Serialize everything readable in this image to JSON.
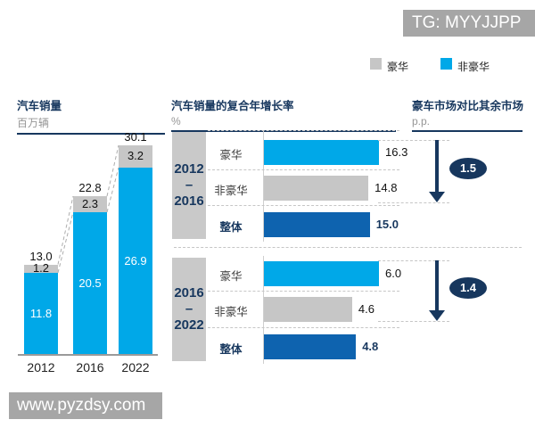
{
  "banner": {
    "text": "TG: MYYJJPP"
  },
  "watermark": {
    "text": "www.pyzdsy.com"
  },
  "legend": {
    "items": [
      {
        "name": "luxury",
        "label": "豪华",
        "color": "#c6c6c6"
      },
      {
        "name": "non-luxury",
        "label": "非豪华",
        "color": "#00a8e8"
      }
    ]
  },
  "colors": {
    "navy": "#17375e",
    "light_blue": "#00a8e8",
    "dark_blue": "#0e63af",
    "gray_bar": "#c6c6c6",
    "gray_block": "#c9c9c9",
    "banner_gray": "#a6a6a6"
  },
  "chart_data": [
    {
      "id": "auto-sales",
      "type": "bar",
      "stacked": true,
      "title": "汽车销量",
      "unit": "百万辆",
      "categories": [
        "2012",
        "2016",
        "2022"
      ],
      "series": [
        {
          "name": "非豪华",
          "color": "#00a8e8",
          "values": [
            11.8,
            20.5,
            26.9
          ]
        },
        {
          "name": "豪华",
          "color": "#c6c6c6",
          "values": [
            1.2,
            2.3,
            3.2
          ]
        }
      ],
      "totals": [
        13.0,
        22.8,
        30.1
      ],
      "ylim": [
        0,
        30.1
      ],
      "grid": false
    },
    {
      "id": "cagr",
      "type": "bar",
      "orientation": "horizontal",
      "title": "汽车销量的复合年增长率",
      "unit": "%",
      "groups": [
        {
          "period": [
            "2012",
            "–",
            "2016"
          ],
          "rows": [
            {
              "label": "豪华",
              "value": 16.3,
              "color": "#00a8e8",
              "bold": false
            },
            {
              "label": "非豪华",
              "value": 14.8,
              "color": "#c6c6c6",
              "bold": false
            },
            {
              "label": "整体",
              "value": 15.0,
              "color": "#0e63af",
              "bold": true
            }
          ]
        },
        {
          "period": [
            "2016",
            "–",
            "2022"
          ],
          "rows": [
            {
              "label": "豪华",
              "value": 6.0,
              "color": "#00a8e8",
              "bold": false
            },
            {
              "label": "非豪华",
              "value": 4.6,
              "color": "#c6c6c6",
              "bold": false
            },
            {
              "label": "整体",
              "value": 4.8,
              "color": "#0e63af",
              "bold": true
            }
          ]
        }
      ]
    },
    {
      "id": "gap",
      "type": "annotation",
      "title": "豪车市场对比其余市场",
      "unit": "p.p.",
      "values": [
        1.5,
        1.4
      ],
      "arrow_direction": "down"
    }
  ]
}
